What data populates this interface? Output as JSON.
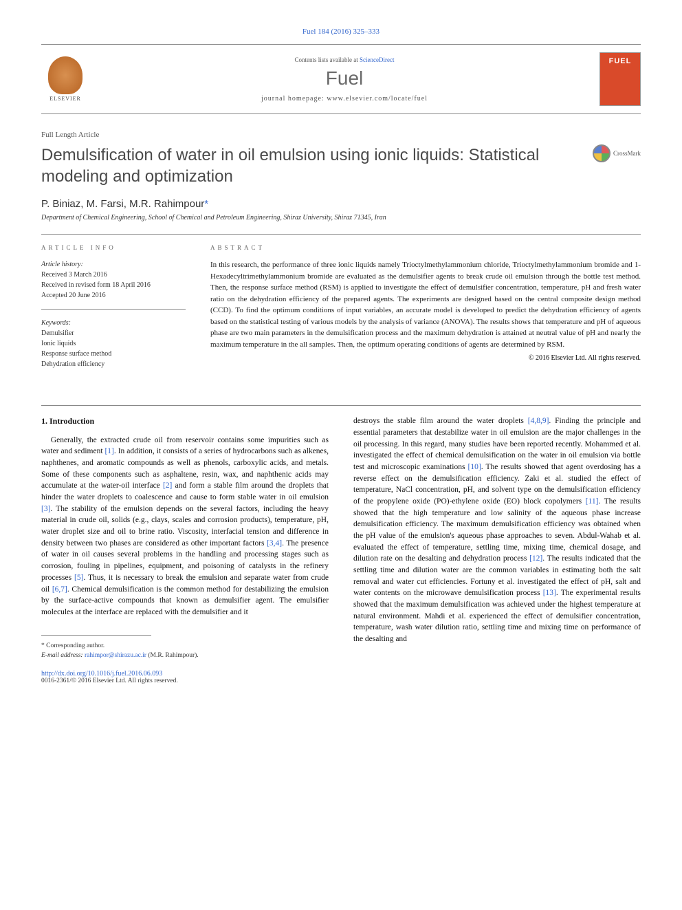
{
  "citation": {
    "text": "Fuel 184 (2016) 325–333",
    "link_color": "#3366cc"
  },
  "banner": {
    "contents_prefix": "Contents lists available at ",
    "contents_link": "ScienceDirect",
    "journal_name": "Fuel",
    "homepage_prefix": "journal homepage: ",
    "homepage_url": "www.elsevier.com/locate/fuel",
    "publisher_label": "ELSEVIER",
    "cover_text": "FUEL"
  },
  "article": {
    "type": "Full Length Article",
    "title": "Demulsification of water in oil emulsion using ionic liquids: Statistical modeling and optimization",
    "crossmark": "CrossMark",
    "authors": "P. Biniaz, M. Farsi, M.R. Rahimpour",
    "corr_symbol": "*",
    "affiliation": "Department of Chemical Engineering, School of Chemical and Petroleum Engineering, Shiraz University, Shiraz 71345, Iran"
  },
  "info": {
    "label": "ARTICLE INFO",
    "history_label": "Article history:",
    "received": "Received 3 March 2016",
    "revised": "Received in revised form 18 April 2016",
    "accepted": "Accepted 20 June 2016",
    "keywords_label": "Keywords:",
    "kw1": "Demulsifier",
    "kw2": "Ionic liquids",
    "kw3": "Response surface method",
    "kw4": "Dehydration efficiency"
  },
  "abstract": {
    "label": "ABSTRACT",
    "text": "In this research, the performance of three ionic liquids namely Trioctylmethylammonium chloride, Trioctylmethylammonium bromide and 1-Hexadecyltrimethylammonium bromide are evaluated as the demulsifier agents to break crude oil emulsion through the bottle test method. Then, the response surface method (RSM) is applied to investigate the effect of demulsifier concentration, temperature, pH and fresh water ratio on the dehydration efficiency of the prepared agents. The experiments are designed based on the central composite design method (CCD). To find the optimum conditions of input variables, an accurate model is developed to predict the dehydration efficiency of agents based on the statistical testing of various models by the analysis of variance (ANOVA). The results shows that temperature and pH of aqueous phase are two main parameters in the demulsification process and the maximum dehydration is attained at neutral value of pH and nearly the maximum temperature in the all samples. Then, the optimum operating conditions of agents are determined by RSM.",
    "copyright": "© 2016 Elsevier Ltd. All rights reserved."
  },
  "body": {
    "section_number": "1.",
    "section_title": "Introduction",
    "col1_a": "Generally, the extracted crude oil from reservoir contains some impurities such as water and sediment ",
    "ref1": "[1]",
    "col1_b": ". In addition, it consists of a series of hydrocarbons such as alkenes, naphthenes, and aromatic compounds as well as phenols, carboxylic acids, and metals. Some of these components such as asphaltene, resin, wax, and naphthenic acids may accumulate at the water-oil interface ",
    "ref2": "[2]",
    "col1_c": " and form a stable film around the droplets that hinder the water droplets to coalescence and cause to form stable water in oil emulsion ",
    "ref3": "[3]",
    "col1_d": ". The stability of the emulsion depends on the several factors, including the heavy material in crude oil, solids (e.g., clays, scales and corrosion products), temperature, pH, water droplet size and oil to brine ratio. Viscosity, interfacial tension and difference in density between two phases are considered as other important factors ",
    "ref34": "[3,4]",
    "col1_e": ". The presence of water in oil causes several problems in the handling and processing stages such as corrosion, fouling in pipelines, equipment, and poisoning of catalysts in the refinery processes ",
    "ref5": "[5]",
    "col1_f": ". Thus, it is necessary to break the emulsion and separate water from crude oil ",
    "ref67": "[6,7]",
    "col1_g": ". Chemical demulsification is the common method for destabilizing the emulsion by the surface-active compounds that known as demulsifier agent. The emulsifier molecules at the interface are replaced with the demulsifier and it",
    "col2_a": "destroys the stable film around the water droplets ",
    "ref489": "[4,8,9]",
    "col2_b": ". Finding the principle and essential parameters that destabilize water in oil emulsion are the major challenges in the oil processing. In this regard, many studies have been reported recently. Mohammed et al. investigated the effect of chemical demulsification on the water in oil emulsion via bottle test and microscopic examinations ",
    "ref10": "[10]",
    "col2_c": ". The results showed that agent overdosing has a reverse effect on the demulsification efficiency. Zaki et al. studied the effect of temperature, NaCl concentration, pH, and solvent type on the demulsification efficiency of the propylene oxide (PO)-ethylene oxide (EO) block copolymers ",
    "ref11": "[11]",
    "col2_d": ". The results showed that the high temperature and low salinity of the aqueous phase increase demulsification efficiency. The maximum demulsification efficiency was obtained when the pH value of the emulsion's aqueous phase approaches to seven. Abdul-Wahab et al. evaluated the effect of temperature, settling time, mixing time, chemical dosage, and dilution rate on the desalting and dehydration process ",
    "ref12": "[12]",
    "col2_e": ". The results indicated that the settling time and dilution water are the common variables in estimating both the salt removal and water cut efficiencies. Fortuny et al. investigated the effect of pH, salt and water contents on the microwave demulsification process ",
    "ref13": "[13]",
    "col2_f": ". The experimental results showed that the maximum demulsification was achieved under the highest temperature at natural environment. Mahdi et al. experienced the effect of demulsifier concentration, temperature, wash water dilution ratio, settling time and mixing time on performance of the desalting and"
  },
  "footer": {
    "corr_label": "* Corresponding author.",
    "email_label": "E-mail address:",
    "email": "rahimpor@shirazu.ac.ir",
    "email_name": " (M.R. Rahimpour).",
    "doi_url": "http://dx.doi.org/10.1016/j.fuel.2016.06.093",
    "issn": "0016-2361/© 2016 Elsevier Ltd. All rights reserved."
  },
  "colors": {
    "link": "#3366cc",
    "journal_cover": "#d94a2a",
    "text_gray": "#555555"
  }
}
